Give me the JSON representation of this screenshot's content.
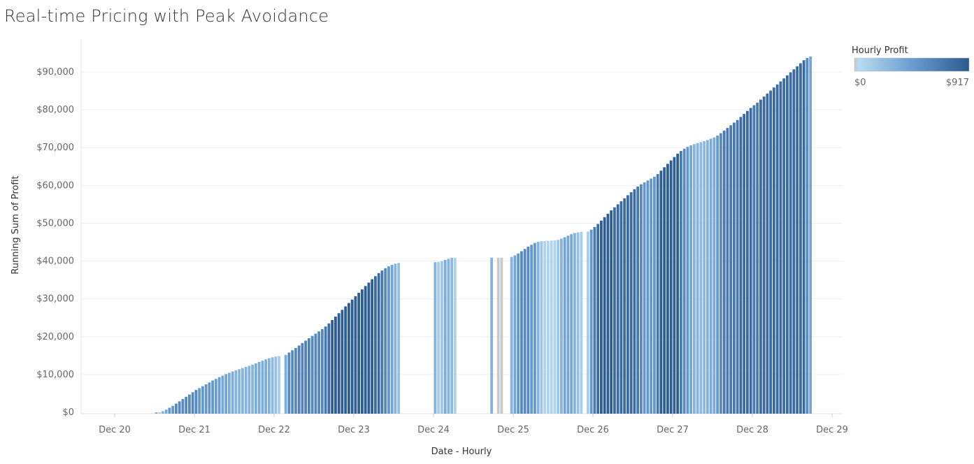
{
  "chart_data": {
    "type": "bar",
    "title": "Real-time Pricing with Peak Avoidance",
    "xlabel": "Date - Hourly",
    "ylabel": "Running Sum of Profit",
    "ylim": [
      0,
      98000
    ],
    "y_ticks": [
      0,
      10000,
      20000,
      30000,
      40000,
      50000,
      60000,
      70000,
      80000,
      90000
    ],
    "y_tick_labels": [
      "$0",
      "$10,000",
      "$20,000",
      "$30,000",
      "$40,000",
      "$50,000",
      "$60,000",
      "$70,000",
      "$80,000",
      "$90,000"
    ],
    "x_ticks": [
      "Dec 20",
      "Dec 21",
      "Dec 22",
      "Dec 23",
      "Dec 24",
      "Dec 25",
      "Dec 26",
      "Dec 27",
      "Dec 28",
      "Dec 29"
    ],
    "grid": "horizontal",
    "legend": {
      "title": "Hourly Profit",
      "min_label": "$0",
      "max_label": "$917",
      "min": 0,
      "max": 917,
      "placement": "top-right",
      "colors": {
        "zero": "#c9c9c9",
        "low": "#b7daf0",
        "mid": "#6a9ed0",
        "high": "#2b5a8f"
      }
    },
    "series": [
      {
        "values": [
          [
            14,
            0
          ],
          [
            15,
            0
          ],
          [
            16,
            300
          ],
          [
            17,
            700
          ],
          [
            18,
            1200
          ],
          [
            19,
            1700
          ],
          [
            20,
            2300
          ],
          [
            21,
            2900
          ],
          [
            22,
            3500
          ],
          [
            23,
            4100
          ],
          [
            24,
            4700
          ],
          [
            25,
            5300
          ],
          [
            26,
            5900
          ],
          [
            27,
            6400
          ],
          [
            28,
            6900
          ],
          [
            29,
            7400
          ],
          [
            30,
            7900
          ],
          [
            31,
            8400
          ],
          [
            32,
            8850
          ],
          [
            33,
            9300
          ],
          [
            34,
            9700
          ],
          [
            35,
            10100
          ],
          [
            36,
            10450
          ],
          [
            37,
            10800
          ],
          [
            38,
            11100
          ],
          [
            39,
            11400
          ],
          [
            40,
            11700
          ],
          [
            41,
            12000
          ],
          [
            42,
            12300
          ],
          [
            43,
            12600
          ],
          [
            44,
            12950
          ],
          [
            45,
            13300
          ],
          [
            46,
            13650
          ],
          [
            47,
            14000
          ],
          [
            48,
            14300
          ],
          [
            49,
            14550
          ],
          [
            50,
            14750
          ],
          [
            51,
            14850
          ],
          [
            53,
            15200
          ],
          [
            54,
            15800
          ],
          [
            55,
            16400
          ],
          [
            56,
            17000
          ],
          [
            57,
            17650
          ],
          [
            58,
            18300
          ],
          [
            59,
            18950
          ],
          [
            60,
            19600
          ],
          [
            61,
            20200
          ],
          [
            62,
            20800
          ],
          [
            63,
            21400
          ],
          [
            64,
            22000
          ],
          [
            65,
            22700
          ],
          [
            66,
            23500
          ],
          [
            67,
            24400
          ],
          [
            68,
            25300
          ],
          [
            69,
            26200
          ],
          [
            70,
            27100
          ],
          [
            71,
            28000
          ],
          [
            72,
            28900
          ],
          [
            73,
            29800
          ],
          [
            74,
            30700
          ],
          [
            75,
            31600
          ],
          [
            76,
            32500
          ],
          [
            77,
            33400
          ],
          [
            78,
            34300
          ],
          [
            79,
            35200
          ],
          [
            80,
            36000
          ],
          [
            81,
            36800
          ],
          [
            82,
            37500
          ],
          [
            83,
            38100
          ],
          [
            84,
            38600
          ],
          [
            85,
            39000
          ],
          [
            86,
            39300
          ],
          [
            87,
            39500
          ],
          [
            98,
            39700
          ],
          [
            99,
            39800
          ],
          [
            100,
            39950
          ],
          [
            101,
            40300
          ],
          [
            102,
            40600
          ],
          [
            103,
            40850
          ],
          [
            104,
            40900
          ],
          [
            115,
            40900
          ],
          [
            117,
            40900
          ],
          [
            118,
            40900
          ],
          [
            121,
            41100
          ],
          [
            122,
            41500
          ],
          [
            123,
            42000
          ],
          [
            124,
            42600
          ],
          [
            125,
            43200
          ],
          [
            126,
            43800
          ],
          [
            127,
            44300
          ],
          [
            128,
            44800
          ],
          [
            129,
            45100
          ],
          [
            130,
            45250
          ],
          [
            131,
            45300
          ],
          [
            132,
            45350
          ],
          [
            133,
            45400
          ],
          [
            134,
            45450
          ],
          [
            135,
            45600
          ],
          [
            136,
            45900
          ],
          [
            137,
            46300
          ],
          [
            138,
            46700
          ],
          [
            139,
            47100
          ],
          [
            140,
            47400
          ],
          [
            141,
            47600
          ],
          [
            142,
            47700
          ],
          [
            144,
            47800
          ],
          [
            145,
            48300
          ],
          [
            146,
            49000
          ],
          [
            147,
            49800
          ],
          [
            148,
            50700
          ],
          [
            149,
            51600
          ],
          [
            150,
            52500
          ],
          [
            151,
            53400
          ],
          [
            152,
            54200
          ],
          [
            153,
            55000
          ],
          [
            154,
            55800
          ],
          [
            155,
            56600
          ],
          [
            156,
            57400
          ],
          [
            157,
            58200
          ],
          [
            158,
            59000
          ],
          [
            159,
            59700
          ],
          [
            160,
            60300
          ],
          [
            161,
            60800
          ],
          [
            162,
            61300
          ],
          [
            163,
            61800
          ],
          [
            164,
            62300
          ],
          [
            165,
            63000
          ],
          [
            166,
            63900
          ],
          [
            167,
            64800
          ],
          [
            168,
            65700
          ],
          [
            169,
            66600
          ],
          [
            170,
            67500
          ],
          [
            171,
            68400
          ],
          [
            172,
            69100
          ],
          [
            173,
            69700
          ],
          [
            174,
            70200
          ],
          [
            175,
            70600
          ],
          [
            176,
            70900
          ],
          [
            177,
            71200
          ],
          [
            178,
            71450
          ],
          [
            179,
            71700
          ],
          [
            180,
            72000
          ],
          [
            181,
            72350
          ],
          [
            182,
            72700
          ],
          [
            183,
            73200
          ],
          [
            184,
            73800
          ],
          [
            185,
            74500
          ],
          [
            186,
            75200
          ],
          [
            187,
            75900
          ],
          [
            188,
            76600
          ],
          [
            189,
            77300
          ],
          [
            190,
            78100
          ],
          [
            191,
            78900
          ],
          [
            192,
            79700
          ],
          [
            193,
            80500
          ],
          [
            194,
            81200
          ],
          [
            195,
            81900
          ],
          [
            196,
            82700
          ],
          [
            197,
            83500
          ],
          [
            198,
            84300
          ],
          [
            199,
            85100
          ],
          [
            200,
            85900
          ],
          [
            201,
            86700
          ],
          [
            202,
            87500
          ],
          [
            203,
            88300
          ],
          [
            204,
            89100
          ],
          [
            205,
            89900
          ],
          [
            206,
            90700
          ],
          [
            207,
            91500
          ],
          [
            208,
            92300
          ],
          [
            209,
            93100
          ],
          [
            210,
            93700
          ],
          [
            211,
            94100
          ]
        ]
      }
    ]
  }
}
